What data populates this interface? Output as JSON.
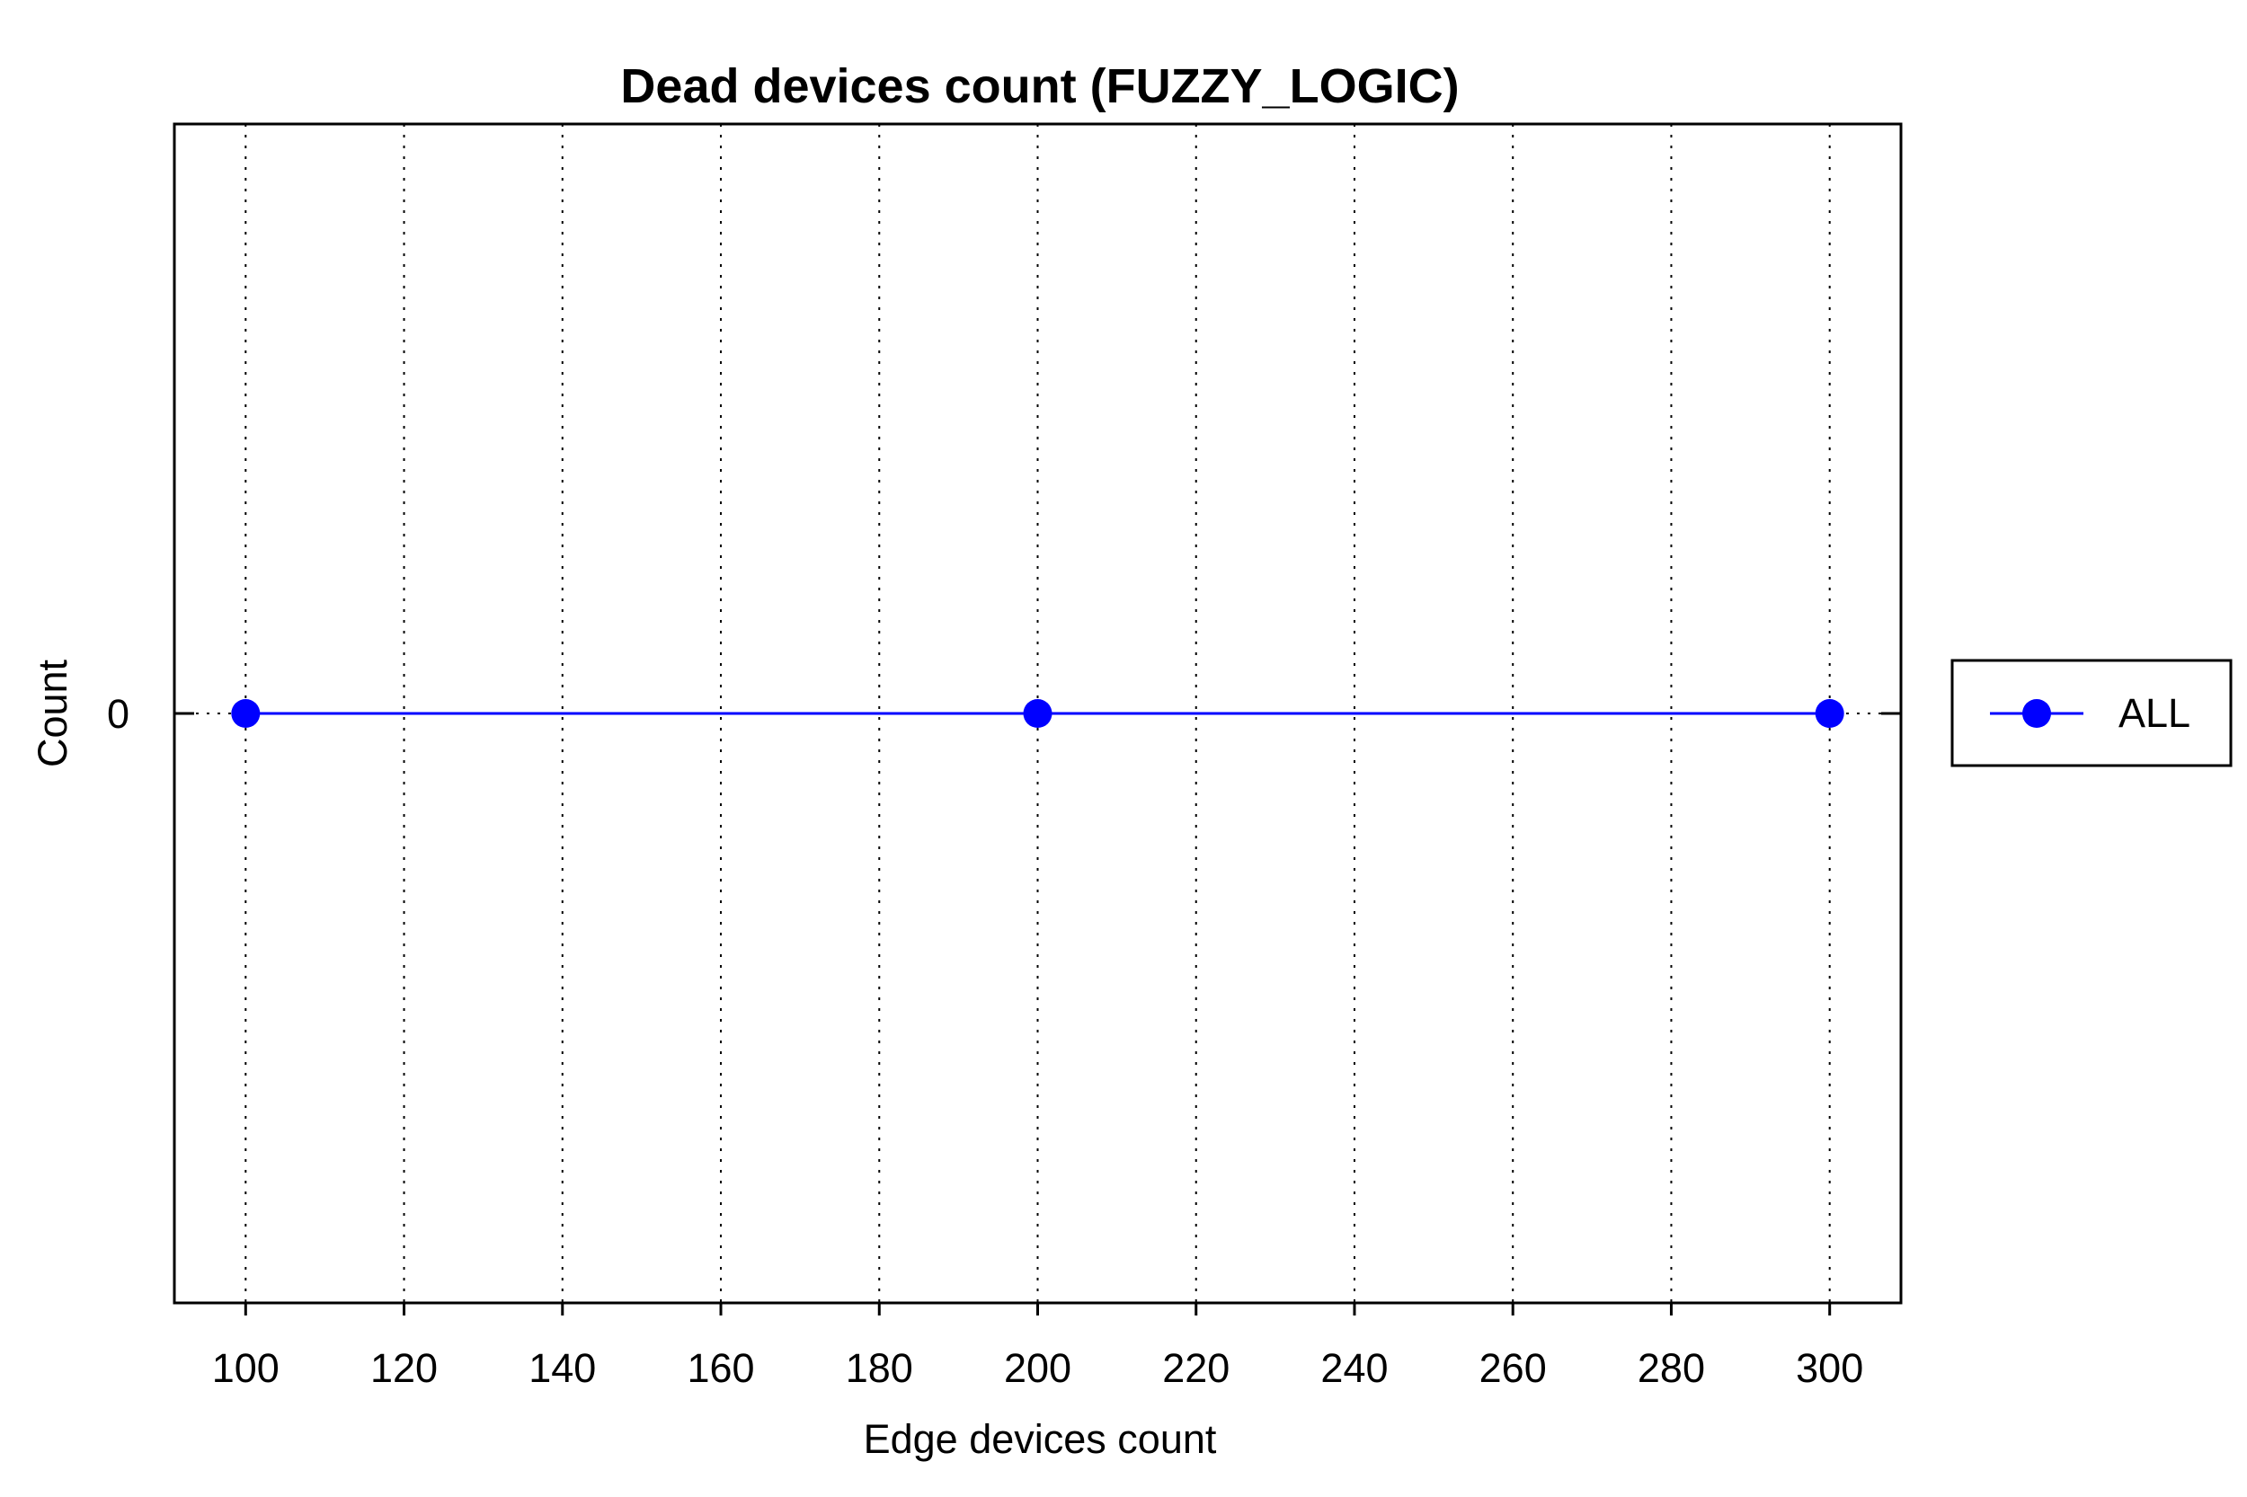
{
  "chart_data": {
    "type": "line",
    "title": "Dead devices count (FUZZY_LOGIC)",
    "xlabel": "Edge devices count",
    "ylabel": "Count",
    "xlim": [
      91,
      309
    ],
    "ylim": [
      -1,
      1
    ],
    "x_ticks": [
      100,
      120,
      140,
      160,
      180,
      200,
      220,
      240,
      260,
      280,
      300
    ],
    "y_ticks": [
      0
    ],
    "grid": "vertical dotted",
    "legend_position": "right",
    "series": [
      {
        "name": "ALL",
        "color": "#0000ff",
        "marker": "circle",
        "x": [
          100,
          200,
          300
        ],
        "y": [
          0,
          0,
          0
        ]
      }
    ]
  }
}
